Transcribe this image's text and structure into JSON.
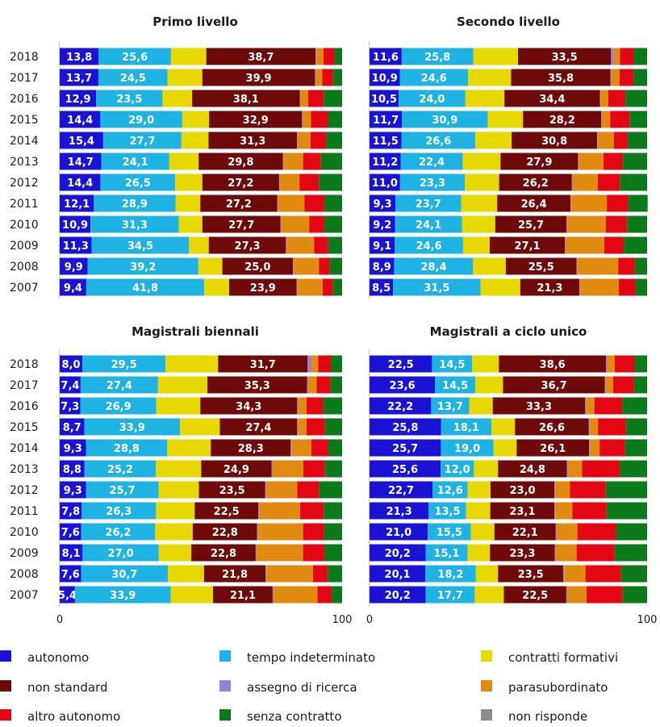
{
  "chart_data": {
    "type": "bar",
    "stacked": true,
    "orientation": "horizontal",
    "xlim": [
      0,
      100
    ],
    "x_ticks": [
      "0",
      "100"
    ],
    "grid": false,
    "legend_placement": "bottom",
    "categories": [
      "2018",
      "2017",
      "2016",
      "2015",
      "2014",
      "2013",
      "2012",
      "2011",
      "2010",
      "2009",
      "2008",
      "2007"
    ],
    "legend": [
      {
        "key": "autonomo",
        "label": "autonomo",
        "color": "#1a13d4"
      },
      {
        "key": "tempo_indeterminato",
        "label": "tempo indeterminato",
        "color": "#1fb3e3"
      },
      {
        "key": "contratti_formativi",
        "label": "contratti formativi",
        "color": "#e6d800"
      },
      {
        "key": "non_standard",
        "label": "non standard",
        "color": "#6e0a0a"
      },
      {
        "key": "assegno_di_ricerca",
        "label": "assegno di ricerca",
        "color": "#9a7fd6"
      },
      {
        "key": "parasubordinato",
        "label": "parasubordinato",
        "color": "#e08a10"
      },
      {
        "key": "altro_autonomo",
        "label": "altro autonomo",
        "color": "#e30613"
      },
      {
        "key": "senza_contratto",
        "label": "senza contratto",
        "color": "#0a7a1a"
      },
      {
        "key": "non_risponde",
        "label": "non risponde",
        "color": "#8c8c8c"
      }
    ],
    "panels": [
      {
        "title": "Primo livello",
        "series": [
          {
            "name": "autonomo",
            "values": [
              13.8,
              13.7,
              12.9,
              14.4,
              15.4,
              14.7,
              14.4,
              12.1,
              10.9,
              11.3,
              9.9,
              9.4
            ]
          },
          {
            "name": "tempo indeterminato",
            "values": [
              25.6,
              24.5,
              23.5,
              29.0,
              27.7,
              24.1,
              26.5,
              28.9,
              31.3,
              34.5,
              39.2,
              41.8
            ]
          },
          {
            "name": "contratti formativi",
            "values": [
              12.5,
              12.3,
              10.5,
              9.5,
              9.6,
              10.4,
              9.6,
              8.8,
              8.3,
              7.0,
              8.5,
              8.8
            ]
          },
          {
            "name": "non standard",
            "values": [
              38.7,
              39.9,
              38.1,
              32.9,
              31.3,
              29.8,
              27.2,
              27.2,
              27.7,
              27.3,
              25.0,
              23.9
            ]
          },
          {
            "name": "assegno di ricerca",
            "values": [
              0.3,
              0.3,
              0.2,
              0.2,
              0.2,
              0.2,
              0.2,
              0.2,
              0.2,
              0.2,
              0.2,
              0.2
            ]
          },
          {
            "name": "parasubordinato",
            "values": [
              2.5,
              2.3,
              2.8,
              3.0,
              4.6,
              7.0,
              7.0,
              9.5,
              10.0,
              9.8,
              9.0,
              9.0
            ]
          },
          {
            "name": "altro autonomo",
            "values": [
              3.9,
              3.8,
              5.5,
              6.0,
              5.5,
              6.3,
              6.9,
              7.0,
              5.3,
              5.0,
              3.8,
              3.7
            ]
          },
          {
            "name": "senza contratto",
            "values": [
              2.7,
              3.2,
              6.5,
              5.0,
              5.7,
              7.5,
              8.2,
              6.3,
              6.3,
              4.9,
              4.4,
              3.2
            ]
          },
          {
            "name": "non risponde",
            "values": [
              0,
              0,
              0,
              0,
              0,
              0,
              0,
              0,
              0,
              0,
              0,
              0
            ]
          }
        ]
      },
      {
        "title": "Secondo livello",
        "series": [
          {
            "name": "autonomo",
            "values": [
              11.6,
              10.9,
              10.5,
              11.7,
              11.5,
              11.2,
              11.0,
              9.3,
              9.2,
              9.1,
              8.9,
              8.5
            ]
          },
          {
            "name": "tempo indeterminato",
            "values": [
              25.8,
              24.6,
              24.0,
              30.9,
              26.6,
              22.4,
              23.3,
              23.7,
              24.1,
              24.6,
              28.4,
              31.5
            ]
          },
          {
            "name": "contratti formativi",
            "values": [
              16.1,
              15.5,
              14.1,
              12.7,
              13.1,
              13.6,
              12.4,
              13.0,
              12.0,
              9.6,
              11.8,
              14.3
            ]
          },
          {
            "name": "non standard",
            "values": [
              33.5,
              35.8,
              34.4,
              28.2,
              30.8,
              27.9,
              26.2,
              26.4,
              25.7,
              27.1,
              25.5,
              21.3
            ]
          },
          {
            "name": "assegno di ricerca",
            "values": [
              1.0,
              0.3,
              0.2,
              0.2,
              0.2,
              0.2,
              0.2,
              0.2,
              0.2,
              0.2,
              0.2,
              0.2
            ]
          },
          {
            "name": "parasubordinato",
            "values": [
              2.2,
              3.0,
              2.8,
              3.0,
              5.8,
              9.0,
              9.1,
              12.9,
              13.9,
              14.0,
              14.8,
              14.0
            ]
          },
          {
            "name": "altro autonomo",
            "values": [
              5.0,
              5.0,
              6.2,
              7.0,
              5.0,
              7.0,
              8.0,
              7.7,
              7.7,
              7.0,
              6.0,
              6.0
            ]
          },
          {
            "name": "senza contratto",
            "values": [
              4.8,
              4.9,
              7.8,
              6.3,
              7.0,
              8.7,
              9.8,
              7.0,
              7.2,
              8.4,
              4.4,
              4.2
            ]
          },
          {
            "name": "non risponde",
            "values": [
              0,
              0,
              0,
              0,
              0,
              0,
              0,
              0,
              0,
              0,
              0,
              0
            ]
          }
        ]
      },
      {
        "title": "Magistrali biennali",
        "series": [
          {
            "name": "autonomo",
            "values": [
              8.0,
              7.4,
              7.3,
              8.7,
              9.3,
              8.8,
              9.3,
              7.8,
              7.6,
              8.1,
              7.6,
              5.4
            ]
          },
          {
            "name": "tempo indeterminato",
            "values": [
              29.5,
              27.4,
              26.9,
              33.9,
              28.8,
              25.2,
              25.7,
              26.3,
              26.2,
              27.0,
              30.7,
              33.9
            ]
          },
          {
            "name": "contratti formativi",
            "values": [
              18.6,
              17.5,
              15.6,
              14.1,
              15.4,
              16.1,
              14.3,
              13.7,
              13.3,
              11.5,
              12.8,
              15.0
            ]
          },
          {
            "name": "non standard",
            "values": [
              31.7,
              35.3,
              34.3,
              27.4,
              28.3,
              24.9,
              23.5,
              22.5,
              22.8,
              22.8,
              21.8,
              21.1
            ]
          },
          {
            "name": "assegno di ricerca",
            "values": [
              1.2,
              0.4,
              0.3,
              0.3,
              0.3,
              0.3,
              0.3,
              0.3,
              0.3,
              0.3,
              0.3,
              0.3
            ]
          },
          {
            "name": "parasubordinato",
            "values": [
              2.5,
              3.0,
              3.0,
              3.0,
              7.0,
              11.0,
              11.0,
              14.5,
              16.0,
              16.5,
              16.5,
              15.6
            ]
          },
          {
            "name": "altro autonomo",
            "values": [
              4.5,
              4.9,
              6.0,
              6.5,
              5.9,
              7.6,
              7.8,
              8.4,
              7.4,
              7.5,
              5.2,
              5.0
            ]
          },
          {
            "name": "senza contratto",
            "values": [
              4.0,
              4.1,
              6.6,
              6.1,
              5.0,
              6.1,
              8.1,
              6.5,
              6.4,
              6.3,
              5.1,
              3.7
            ]
          },
          {
            "name": "non risponde",
            "values": [
              0,
              0,
              0,
              0,
              0,
              0,
              0,
              0,
              0,
              0,
              0,
              0
            ]
          }
        ]
      },
      {
        "title": "Magistrali a ciclo unico",
        "series": [
          {
            "name": "autonomo",
            "values": [
              22.5,
              23.6,
              22.2,
              25.8,
              25.7,
              25.6,
              22.7,
              21.3,
              21.0,
              20.2,
              20.1,
              20.2
            ]
          },
          {
            "name": "tempo indeterminato",
            "values": [
              14.5,
              14.5,
              13.7,
              18.1,
              19.0,
              12.0,
              12.6,
              13.5,
              15.5,
              15.1,
              18.2,
              17.7
            ]
          },
          {
            "name": "contratti formativi",
            "values": [
              9.6,
              10.0,
              8.5,
              8.5,
              8.3,
              8.7,
              8.3,
              8.7,
              8.5,
              8.1,
              8.0,
              10.5
            ]
          },
          {
            "name": "non standard",
            "values": [
              38.6,
              36.7,
              33.3,
              26.6,
              26.1,
              24.8,
              23.0,
              23.1,
              22.1,
              23.3,
              23.5,
              22.5
            ]
          },
          {
            "name": "assegno di ricerca",
            "values": [
              0.4,
              0.3,
              0.3,
              0.3,
              0.3,
              0.3,
              0.3,
              0.3,
              0.3,
              0.3,
              0.3,
              0.3
            ]
          },
          {
            "name": "parasubordinato",
            "values": [
              2.7,
              2.7,
              3.0,
              3.0,
              3.5,
              5.2,
              5.3,
              6.2,
              7.5,
              7.6,
              7.7,
              7.0
            ]
          },
          {
            "name": "altro autonomo",
            "values": [
              7.2,
              7.5,
              10.0,
              10.1,
              9.2,
              13.5,
              12.9,
              12.3,
              13.9,
              13.7,
              12.8,
              13.0
            ]
          },
          {
            "name": "senza contratto",
            "values": [
              4.5,
              4.7,
              9.0,
              7.6,
              7.9,
              9.9,
              14.9,
              14.6,
              11.2,
              11.7,
              9.4,
              8.8
            ]
          },
          {
            "name": "non risponde",
            "values": [
              0,
              0,
              0,
              0,
              0,
              0,
              0,
              0,
              0,
              0,
              0,
              0
            ]
          }
        ]
      }
    ]
  }
}
